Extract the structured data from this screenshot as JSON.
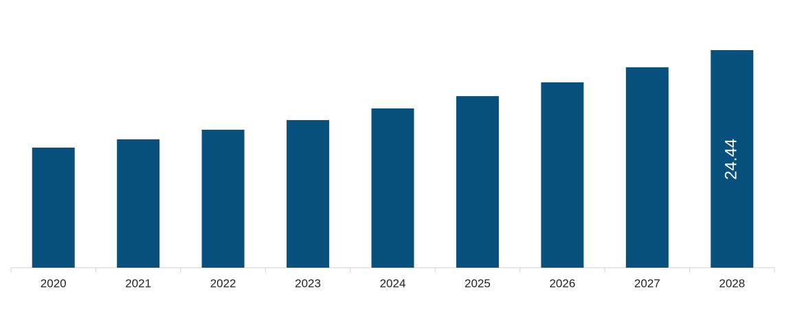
{
  "chart_data": {
    "type": "bar",
    "categories": [
      "2020",
      "2021",
      "2022",
      "2023",
      "2024",
      "2025",
      "2026",
      "2027",
      "2028"
    ],
    "values": [
      13.49,
      14.42,
      15.5,
      16.58,
      17.89,
      19.27,
      20.82,
      22.51,
      24.44
    ],
    "value_labels": [
      null,
      null,
      null,
      null,
      null,
      null,
      null,
      null,
      "24.44"
    ],
    "color": "#08517e"
  }
}
